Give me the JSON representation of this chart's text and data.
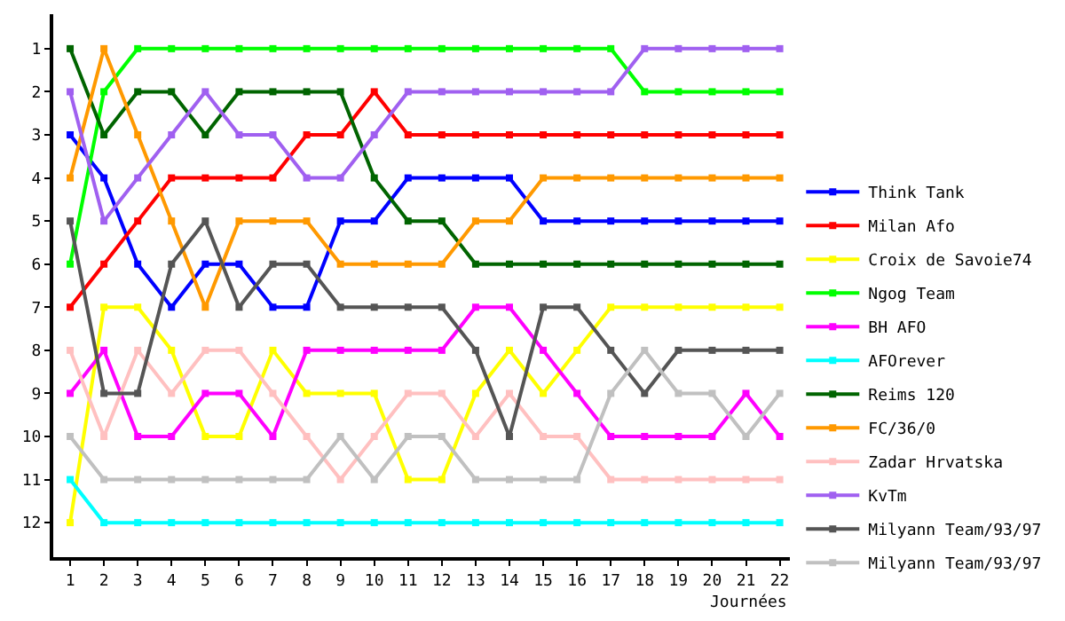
{
  "chart_data": {
    "type": "line",
    "xlabel": "Journées",
    "x": [
      1,
      2,
      3,
      4,
      5,
      6,
      7,
      8,
      9,
      10,
      11,
      12,
      13,
      14,
      15,
      16,
      17,
      18,
      19,
      20,
      21,
      22
    ],
    "xlim": [
      0.5,
      22.3
    ],
    "xticks": [
      1,
      2,
      3,
      4,
      5,
      6,
      7,
      8,
      9,
      10,
      11,
      12,
      13,
      14,
      15,
      16,
      17,
      18,
      19,
      20,
      21,
      22
    ],
    "ylim": [
      12.8,
      0.2
    ],
    "yticks": [
      1,
      2,
      3,
      4,
      5,
      6,
      7,
      8,
      9,
      10,
      11,
      12
    ],
    "legend": "right",
    "marker": "square",
    "line_style": "solid",
    "series": [
      {
        "name": "Think Tank",
        "color": "#0000ff",
        "values": [
          3,
          4,
          6,
          7,
          6,
          6,
          7,
          7,
          5,
          5,
          4,
          4,
          4,
          4,
          5,
          5,
          5,
          5,
          5,
          5,
          5,
          5
        ]
      },
      {
        "name": "Milan Afo",
        "color": "#ff0000",
        "values": [
          7,
          6,
          5,
          4,
          4,
          4,
          4,
          3,
          3,
          2,
          3,
          3,
          3,
          3,
          3,
          3,
          3,
          3,
          3,
          3,
          3,
          3
        ]
      },
      {
        "name": "Croix de Savoie74",
        "color": "#ffff00",
        "values": [
          12,
          7,
          7,
          8,
          10,
          10,
          8,
          9,
          9,
          9,
          11,
          11,
          9,
          8,
          9,
          8,
          7,
          7,
          7,
          7,
          7,
          7
        ]
      },
      {
        "name": "Ngog Team",
        "color": "#00ff00",
        "values": [
          6,
          2,
          1,
          1,
          1,
          1,
          1,
          1,
          1,
          1,
          1,
          1,
          1,
          1,
          1,
          1,
          1,
          2,
          2,
          2,
          2,
          2
        ]
      },
      {
        "name": "BH AFO",
        "color": "#ff00ff",
        "values": [
          9,
          8,
          10,
          10,
          9,
          9,
          10,
          8,
          8,
          8,
          8,
          8,
          7,
          7,
          8,
          9,
          10,
          10,
          10,
          10,
          9,
          10
        ]
      },
      {
        "name": "AFOrever",
        "color": "#00ffff",
        "values": [
          11,
          12,
          12,
          12,
          12,
          12,
          12,
          12,
          12,
          12,
          12,
          12,
          12,
          12,
          12,
          12,
          12,
          12,
          12,
          12,
          12,
          12
        ]
      },
      {
        "name": "Reims 120",
        "color": "#006400",
        "values": [
          1,
          3,
          2,
          2,
          3,
          2,
          2,
          2,
          2,
          4,
          5,
          5,
          6,
          6,
          6,
          6,
          6,
          6,
          6,
          6,
          6,
          6
        ]
      },
      {
        "name": "FC/36/0",
        "color": "#ff9900",
        "values": [
          4,
          1,
          3,
          5,
          7,
          5,
          5,
          5,
          6,
          6,
          6,
          6,
          5,
          5,
          4,
          4,
          4,
          4,
          4,
          4,
          4,
          4
        ]
      },
      {
        "name": "Zadar Hrvatska",
        "color": "#ffc0c0",
        "values": [
          8,
          10,
          8,
          9,
          8,
          8,
          9,
          10,
          11,
          10,
          9,
          9,
          10,
          9,
          10,
          10,
          11,
          11,
          11,
          11,
          11,
          11
        ]
      },
      {
        "name": "KvTm",
        "color": "#a060f0",
        "values": [
          2,
          5,
          4,
          3,
          2,
          3,
          3,
          4,
          4,
          3,
          2,
          2,
          2,
          2,
          2,
          2,
          2,
          1,
          1,
          1,
          1,
          1
        ]
      },
      {
        "name": "Milyann Team/93/97",
        "color": "#555555",
        "values": [
          5,
          9,
          9,
          6,
          5,
          7,
          6,
          6,
          7,
          7,
          7,
          7,
          8,
          10,
          7,
          7,
          8,
          9,
          8,
          8,
          8,
          8
        ]
      },
      {
        "name": "Milyann Team/93/97",
        "color": "#c0c0c0",
        "values": [
          10,
          11,
          11,
          11,
          11,
          11,
          11,
          11,
          10,
          11,
          10,
          10,
          11,
          11,
          11,
          11,
          9,
          8,
          9,
          9,
          10,
          9
        ]
      }
    ]
  }
}
